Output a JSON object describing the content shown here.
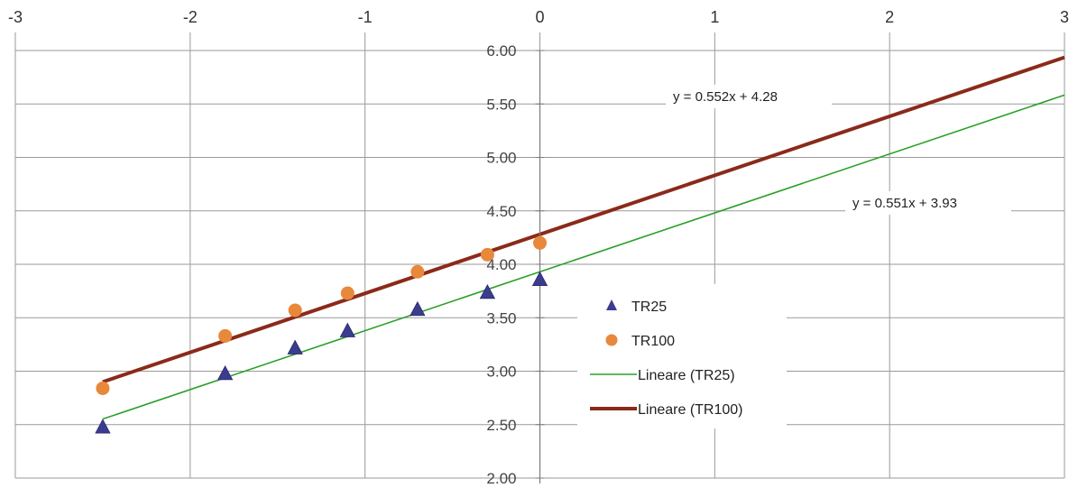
{
  "chart_data": {
    "type": "scatter",
    "title": "",
    "xlabel": "",
    "ylabel": "",
    "xlim": [
      -3,
      3
    ],
    "ylim": [
      2.0,
      6.0
    ],
    "x_ticks": [
      "-3",
      "-2",
      "-1",
      "0",
      "1",
      "2",
      "3"
    ],
    "y_ticks": [
      "2.00",
      "2.50",
      "3.00",
      "3.50",
      "4.00",
      "4.50",
      "5.00",
      "5.50",
      "6.00"
    ],
    "grid": true,
    "legend_position": "right",
    "series": [
      {
        "name": "TR25",
        "kind": "scatter",
        "marker": "triangle",
        "color": "#3b3b8f",
        "x": [
          -2.5,
          -1.8,
          -1.4,
          -1.1,
          -0.7,
          -0.3,
          0.0
        ],
        "y": [
          2.48,
          2.98,
          3.22,
          3.38,
          3.58,
          3.74,
          3.86
        ]
      },
      {
        "name": "TR100",
        "kind": "scatter",
        "marker": "circle",
        "color": "#e8883a",
        "x": [
          -2.5,
          -1.8,
          -1.4,
          -1.1,
          -0.7,
          -0.3,
          0.0
        ],
        "y": [
          2.84,
          3.33,
          3.57,
          3.73,
          3.93,
          4.09,
          4.2
        ]
      },
      {
        "name": "Lineare (TR25)",
        "kind": "trendline",
        "color": "#2aa02a",
        "slope": 0.551,
        "intercept": 3.93,
        "x_range": [
          -2.5,
          3.0
        ],
        "equation": "y = 0.551x + 3.93"
      },
      {
        "name": "Lineare (TR100)",
        "kind": "trendline",
        "color": "#8b2a1a",
        "slope": 0.552,
        "intercept": 4.28,
        "x_range": [
          -2.5,
          3.0
        ],
        "equation": "y = 0.552x + 4.28"
      }
    ]
  }
}
